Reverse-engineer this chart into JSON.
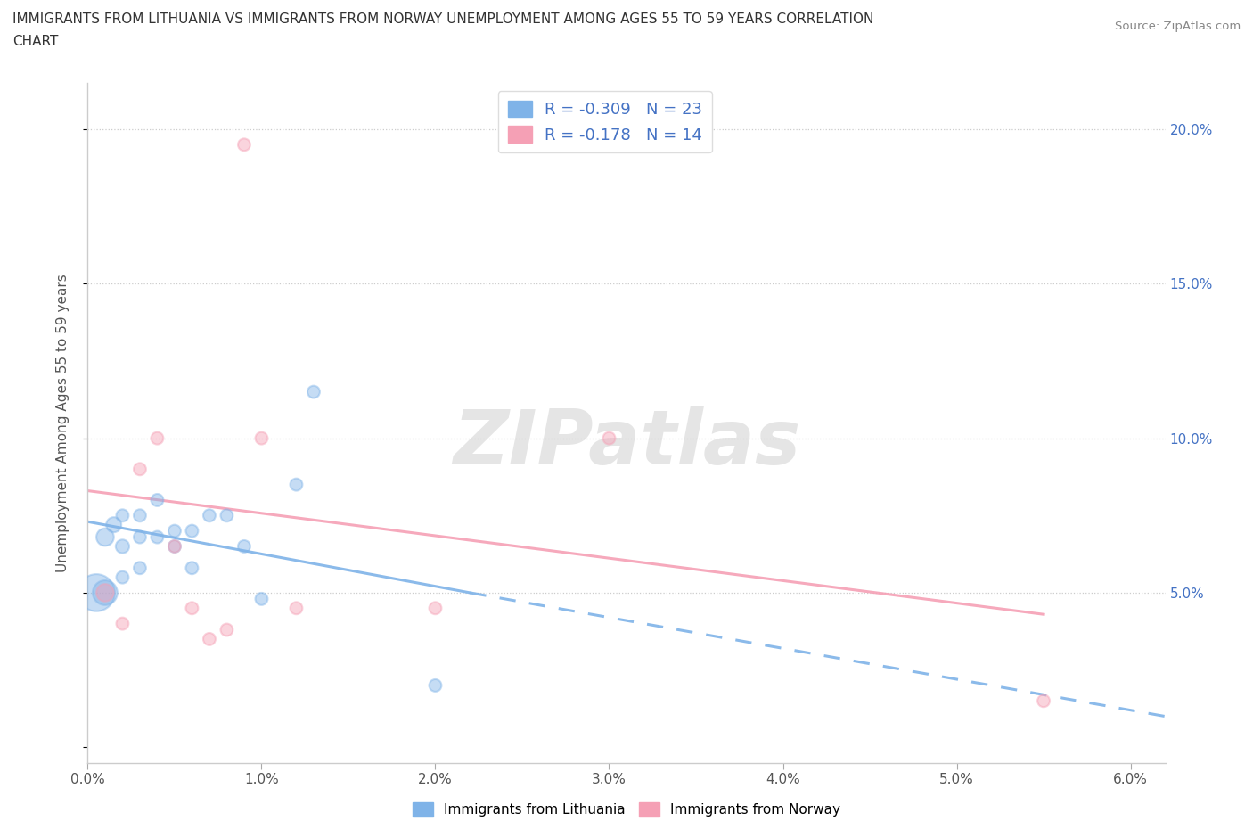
{
  "title_line1": "IMMIGRANTS FROM LITHUANIA VS IMMIGRANTS FROM NORWAY UNEMPLOYMENT AMONG AGES 55 TO 59 YEARS CORRELATION",
  "title_line2": "CHART",
  "source_text": "Source: ZipAtlas.com",
  "ylabel": "Unemployment Among Ages 55 to 59 years",
  "xlim": [
    0.0,
    0.062
  ],
  "ylim": [
    -0.005,
    0.215
  ],
  "background_color": "#ffffff",
  "watermark": "ZIPatlas",
  "lithuania_color": "#7fb3e8",
  "norway_color": "#f5a0b5",
  "legend_R1": "-0.309",
  "legend_N1": "23",
  "legend_R2": "-0.178",
  "legend_N2": "14",
  "lithuania_x": [
    0.0005,
    0.001,
    0.001,
    0.0015,
    0.002,
    0.002,
    0.002,
    0.003,
    0.003,
    0.003,
    0.004,
    0.004,
    0.005,
    0.005,
    0.006,
    0.006,
    0.007,
    0.008,
    0.009,
    0.01,
    0.012,
    0.013,
    0.02
  ],
  "lithuania_y": [
    0.05,
    0.05,
    0.068,
    0.072,
    0.065,
    0.075,
    0.055,
    0.068,
    0.075,
    0.058,
    0.08,
    0.068,
    0.065,
    0.07,
    0.058,
    0.07,
    0.075,
    0.075,
    0.065,
    0.048,
    0.085,
    0.115,
    0.02
  ],
  "lithuania_sizes": [
    900,
    400,
    200,
    150,
    120,
    100,
    100,
    100,
    100,
    100,
    100,
    100,
    100,
    100,
    100,
    100,
    100,
    100,
    100,
    100,
    100,
    100,
    100
  ],
  "norway_x": [
    0.001,
    0.002,
    0.003,
    0.004,
    0.005,
    0.006,
    0.007,
    0.008,
    0.009,
    0.01,
    0.012,
    0.02,
    0.03,
    0.055
  ],
  "norway_y": [
    0.05,
    0.04,
    0.09,
    0.1,
    0.065,
    0.045,
    0.035,
    0.038,
    0.195,
    0.1,
    0.045,
    0.045,
    0.1,
    0.015
  ],
  "norway_sizes": [
    200,
    100,
    100,
    100,
    100,
    100,
    100,
    100,
    100,
    100,
    100,
    100,
    100,
    100
  ],
  "nor_trend_x0": 0.0,
  "nor_trend_x1": 0.055,
  "nor_trend_y0": 0.083,
  "nor_trend_y1": 0.043,
  "lit_trend_solid_x0": 0.0,
  "lit_trend_solid_x1": 0.022,
  "lit_trend_dash_x0": 0.022,
  "lit_trend_dash_x1": 0.062,
  "lit_trend_y0": 0.073,
  "lit_trend_y1_solid": 0.05,
  "lit_trend_y1_dash": 0.01
}
